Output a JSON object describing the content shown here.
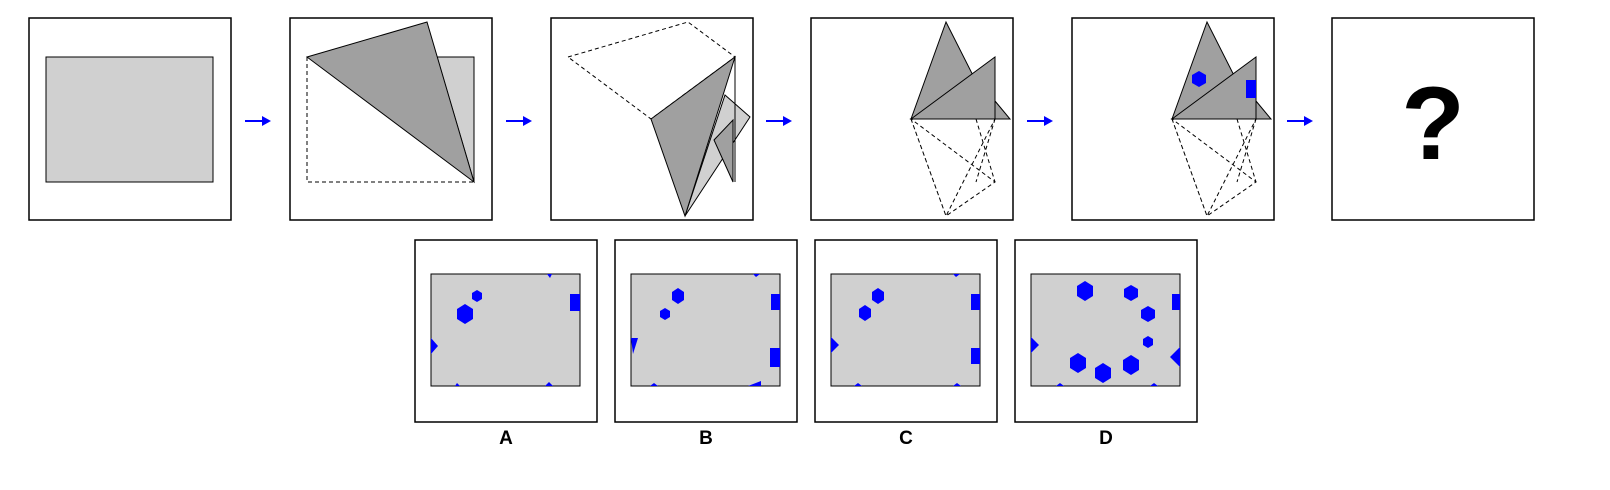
{
  "colors": {
    "paper": "#d0d0d0",
    "fold": "#a0a0a0",
    "hole": "#0000ff",
    "arrow": "#0000ff",
    "frame": "#000000"
  },
  "steps": [
    {
      "name": "step-unfolded-rectangle"
    },
    {
      "name": "step-first-fold"
    },
    {
      "name": "step-second-fold"
    },
    {
      "name": "step-third-fold"
    },
    {
      "name": "step-punched-holes"
    },
    {
      "name": "step-question",
      "text": "?"
    }
  ],
  "options": [
    {
      "label": "A"
    },
    {
      "label": "B"
    },
    {
      "label": "C"
    },
    {
      "label": "D"
    }
  ]
}
